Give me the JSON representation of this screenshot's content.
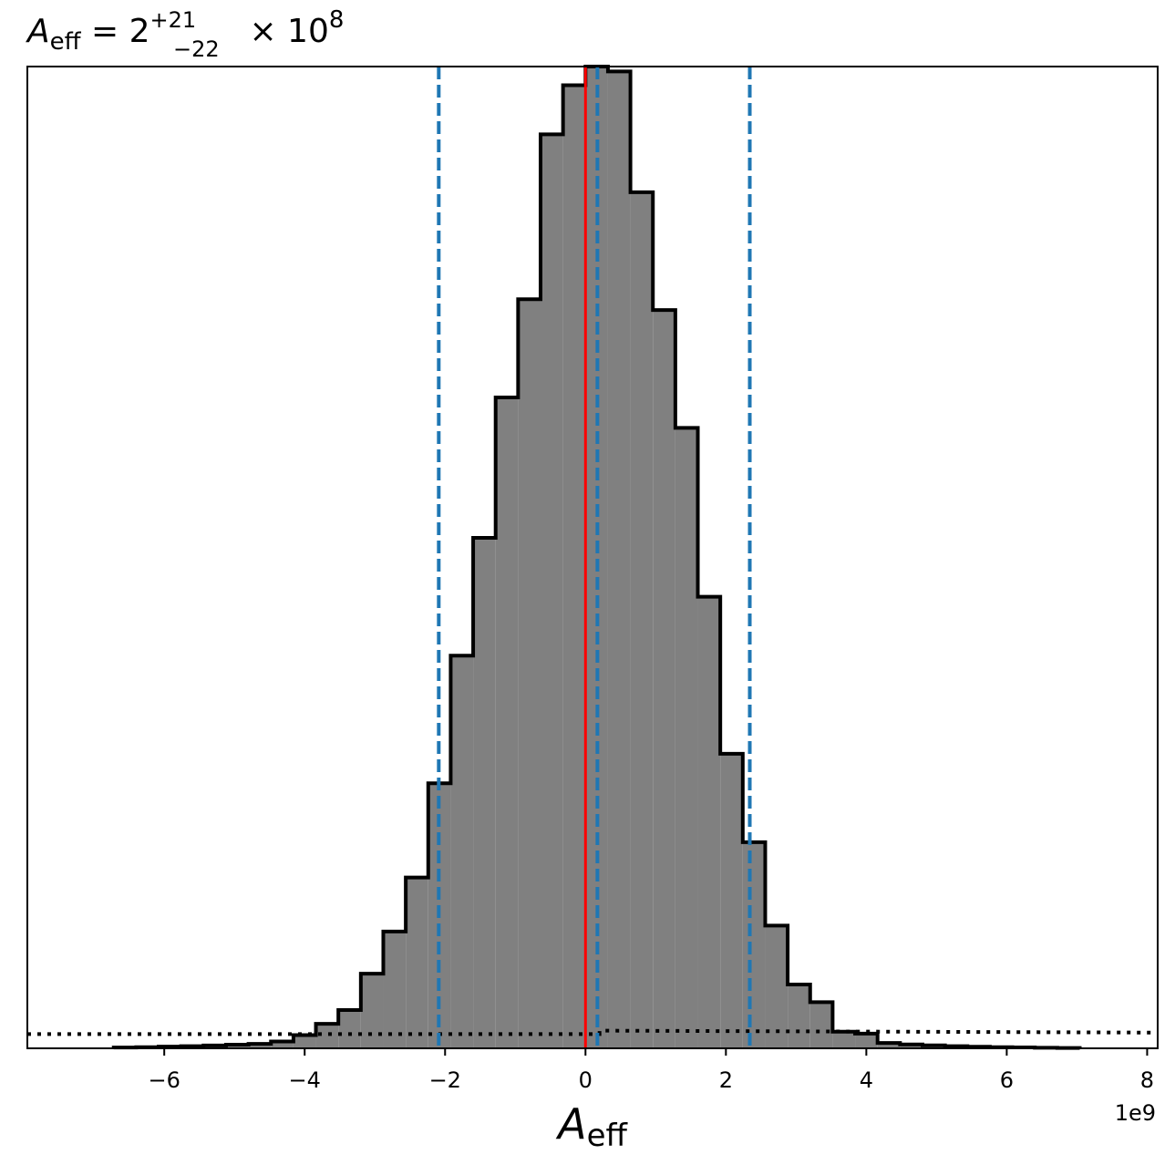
{
  "chart_data": {
    "type": "histogram",
    "title": {
      "symbol": "A",
      "symbol_sub": "eff",
      "equals": " = 2",
      "sup": "+21",
      "sub": "−22",
      "times": " × 10",
      "power": "8"
    },
    "xlabel": {
      "symbol": "A",
      "symbol_sub": "eff"
    },
    "x_offset_label": "1e9",
    "xlim": [
      -7.95,
      8.15
    ],
    "x_scale": 1000000000.0,
    "xticks": [
      {
        "value": -6,
        "label": "−6"
      },
      {
        "value": -4,
        "label": "−4"
      },
      {
        "value": -2,
        "label": "−2"
      },
      {
        "value": 0,
        "label": "0"
      },
      {
        "value": 2,
        "label": "2"
      },
      {
        "value": 4,
        "label": "4"
      },
      {
        "value": 6,
        "label": "6"
      },
      {
        "value": 8,
        "label": "8"
      }
    ],
    "ylim": [
      0,
      1.0
    ],
    "bin_width": 0.32,
    "bins": [
      {
        "x0": -6.72,
        "h": 0.0008
      },
      {
        "x0": -6.4,
        "h": 0.0012
      },
      {
        "x0": -6.08,
        "h": 0.0017
      },
      {
        "x0": -5.76,
        "h": 0.0022
      },
      {
        "x0": -5.44,
        "h": 0.0029
      },
      {
        "x0": -5.12,
        "h": 0.0037
      },
      {
        "x0": -4.8,
        "h": 0.0045
      },
      {
        "x0": -4.48,
        "h": 0.007
      },
      {
        "x0": -4.16,
        "h": 0.0135
      },
      {
        "x0": -3.84,
        "h": 0.025
      },
      {
        "x0": -3.52,
        "h": 0.039
      },
      {
        "x0": -3.2,
        "h": 0.076
      },
      {
        "x0": -2.88,
        "h": 0.119
      },
      {
        "x0": -2.56,
        "h": 0.174
      },
      {
        "x0": -2.24,
        "h": 0.27
      },
      {
        "x0": -1.92,
        "h": 0.4
      },
      {
        "x0": -1.6,
        "h": 0.52
      },
      {
        "x0": -1.28,
        "h": 0.663
      },
      {
        "x0": -0.96,
        "h": 0.763
      },
      {
        "x0": -0.64,
        "h": 0.931
      },
      {
        "x0": -0.32,
        "h": 0.981
      },
      {
        "x0": 0.0,
        "h": 1.0
      },
      {
        "x0": 0.32,
        "h": 0.995
      },
      {
        "x0": 0.64,
        "h": 0.872
      },
      {
        "x0": 0.96,
        "h": 0.752
      },
      {
        "x0": 1.28,
        "h": 0.632
      },
      {
        "x0": 1.6,
        "h": 0.46
      },
      {
        "x0": 1.92,
        "h": 0.3
      },
      {
        "x0": 2.24,
        "h": 0.21
      },
      {
        "x0": 2.56,
        "h": 0.125
      },
      {
        "x0": 2.88,
        "h": 0.065
      },
      {
        "x0": 3.2,
        "h": 0.047
      },
      {
        "x0": 3.52,
        "h": 0.017
      },
      {
        "x0": 3.84,
        "h": 0.015
      },
      {
        "x0": 4.16,
        "h": 0.0055
      },
      {
        "x0": 4.48,
        "h": 0.004
      },
      {
        "x0": 4.8,
        "h": 0.003
      },
      {
        "x0": 5.12,
        "h": 0.0022
      },
      {
        "x0": 5.44,
        "h": 0.0016
      },
      {
        "x0": 5.76,
        "h": 0.0012
      },
      {
        "x0": 6.08,
        "h": 0.0009
      },
      {
        "x0": 6.4,
        "h": 0.0006
      },
      {
        "x0": 6.72,
        "h": 0.0004
      }
    ],
    "vlines_dashed": [
      -2.09,
      0.17,
      2.34
    ],
    "vline_solid": 0.0,
    "prior_dotted": {
      "x": [
        -7.95,
        0.2,
        0.2,
        8.15
      ],
      "h": [
        0.0145,
        0.0145,
        0.018,
        0.016
      ]
    },
    "colors": {
      "hist_fill": "#808080",
      "hist_edge": "#000000",
      "dashed_lines": "#1f77b4",
      "solid_line": "#ff0000",
      "prior_line": "#000000"
    }
  }
}
